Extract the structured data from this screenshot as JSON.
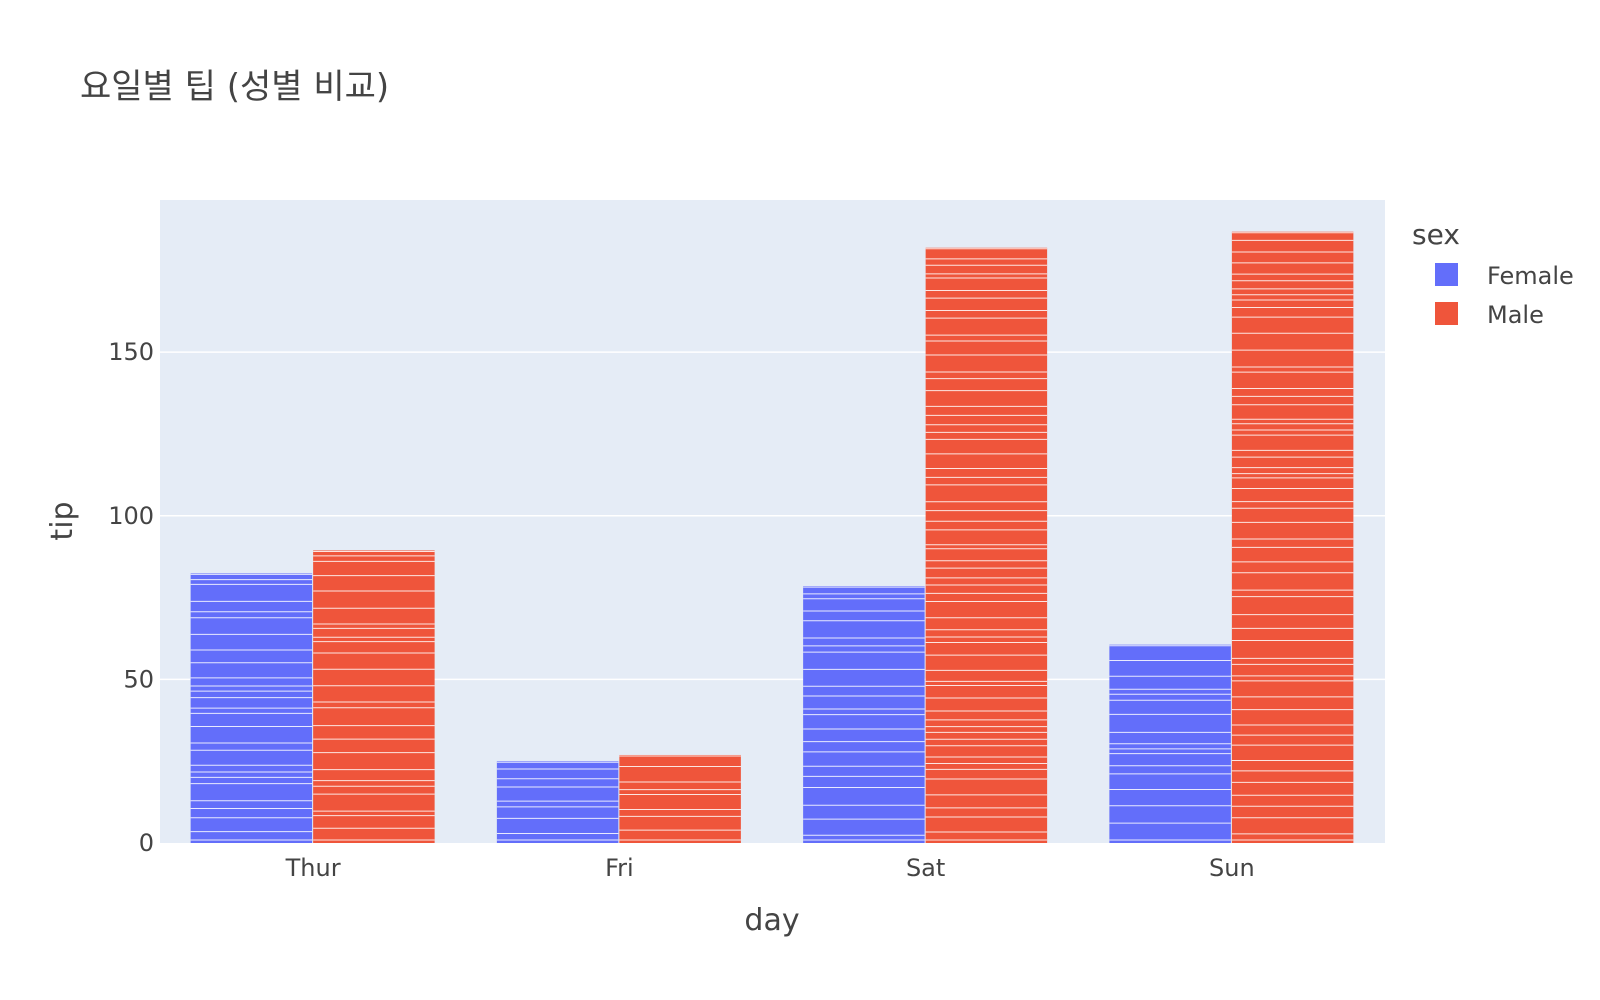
{
  "chart_data": {
    "type": "bar",
    "title": "요일별 팁 (성별 비교)",
    "xlabel": "day",
    "ylabel": "tip",
    "categories": [
      "Thur",
      "Fri",
      "Sat",
      "Sun"
    ],
    "series": [
      {
        "name": "Female",
        "values": [
          82.4,
          25.0,
          78.5,
          60.6
        ],
        "color": "#636efa"
      },
      {
        "name": "Male",
        "values": [
          89.4,
          26.9,
          181.9,
          186.8
        ],
        "color": "#ef553b"
      }
    ],
    "ylim": [
      0,
      196.5
    ],
    "yticks": [
      0,
      50,
      100,
      150
    ],
    "ytick_labels": [
      "0",
      "50",
      "100",
      "150"
    ],
    "grid": true,
    "barmode": "group",
    "legend": {
      "title": "sex",
      "placement": "top-right"
    },
    "colors": {
      "plot_background": "#e5ecf6",
      "grid": "#ffffff"
    }
  }
}
